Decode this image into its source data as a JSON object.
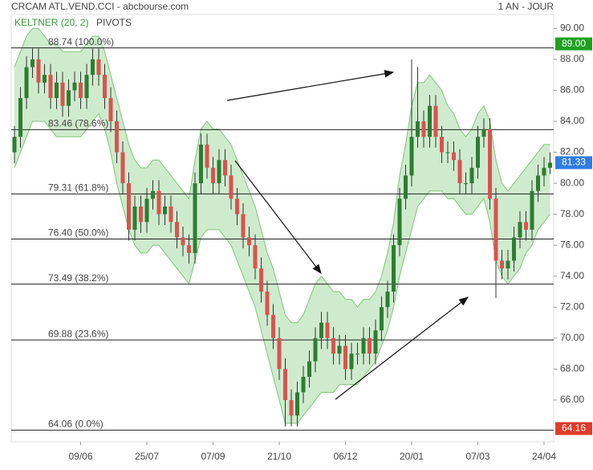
{
  "chart_data": {
    "type": "candlestick",
    "title": "CRCAM ATL.VEND.CCI - abcbourse.com",
    "period": "1 AN - JOUR",
    "indicators": [
      "KELTNER (20, 2)",
      "PIVOTS"
    ],
    "categories": [
      null,
      null,
      null,
      null,
      null,
      null,
      null,
      null,
      null,
      null,
      null,
      "09/06",
      null,
      null,
      null,
      null,
      null,
      null,
      null,
      null,
      null,
      null,
      "25/07",
      null,
      null,
      null,
      null,
      null,
      null,
      null,
      null,
      null,
      null,
      "07/09",
      null,
      null,
      null,
      null,
      null,
      null,
      null,
      null,
      null,
      null,
      "21/10",
      null,
      null,
      null,
      null,
      null,
      null,
      null,
      null,
      null,
      null,
      "06/12",
      null,
      null,
      null,
      null,
      null,
      null,
      null,
      null,
      null,
      null,
      "20/01",
      null,
      null,
      null,
      null,
      null,
      null,
      null,
      null,
      null,
      null,
      "07/03",
      null,
      null,
      null,
      null,
      null,
      null,
      null,
      null,
      null,
      null,
      "24/04",
      null
    ],
    "open": [
      82.0,
      83.0,
      85.5,
      87.5,
      88.0,
      86.5,
      87.0,
      85.5,
      86.5,
      85.0,
      86.0,
      86.5,
      85.5,
      87.0,
      88.0,
      87.0,
      85.5,
      84.0,
      82.0,
      80.0,
      77.0,
      78.5,
      77.5,
      79.0,
      79.5,
      78.0,
      78.5,
      77.5,
      76.5,
      76.0,
      75.5,
      80.0,
      82.5,
      81.0,
      80.0,
      81.5,
      80.5,
      79.0,
      78.0,
      76.5,
      76.0,
      74.5,
      73.0,
      71.5,
      70.0,
      68.0,
      66.0,
      65.0,
      66.5,
      67.5,
      68.5,
      70.0,
      71.0,
      70.0,
      69.0,
      69.5,
      68.0,
      69.0,
      69.0,
      70.0,
      69.0,
      70.5,
      72.0,
      73.0,
      76.0,
      79.0,
      80.5,
      83.0,
      84.0,
      83.0,
      85.0,
      83.0,
      82.0,
      82.0,
      81.5,
      80.0,
      80.0,
      81.0,
      83.0,
      83.5,
      79.0,
      75.0,
      74.5,
      75.0,
      76.5,
      77.5,
      77.0,
      79.5,
      80.5,
      81.0
    ],
    "high": [
      83.7,
      86.2,
      88.2,
      88.7,
      88.7,
      87.7,
      87.7,
      87.2,
      87.2,
      86.7,
      87.2,
      87.2,
      87.7,
      88.7,
      88.7,
      87.7,
      86.2,
      84.7,
      82.7,
      80.7,
      79.2,
      79.2,
      79.7,
      80.2,
      80.2,
      79.2,
      79.2,
      78.2,
      77.2,
      76.7,
      80.7,
      83.2,
      83.2,
      81.7,
      82.2,
      82.2,
      81.2,
      79.7,
      78.7,
      77.2,
      76.7,
      75.2,
      73.7,
      72.2,
      70.7,
      68.7,
      66.7,
      67.2,
      68.2,
      69.2,
      70.7,
      71.7,
      71.7,
      70.7,
      70.2,
      70.2,
      69.7,
      69.7,
      70.7,
      70.7,
      71.2,
      72.7,
      73.7,
      76.7,
      79.7,
      81.2,
      88.0,
      87.5,
      84.7,
      85.7,
      85.7,
      83.7,
      82.7,
      82.7,
      82.2,
      80.7,
      81.7,
      83.7,
      84.2,
      84.2,
      79.7,
      75.7,
      75.7,
      77.2,
      78.2,
      78.2,
      80.2,
      81.2,
      81.7,
      82.0
    ],
    "low": [
      81.3,
      82.3,
      84.8,
      86.8,
      85.8,
      85.8,
      84.8,
      84.8,
      84.3,
      84.3,
      85.3,
      84.8,
      84.8,
      86.3,
      86.3,
      84.8,
      83.3,
      81.3,
      79.3,
      76.3,
      76.3,
      76.8,
      76.8,
      78.3,
      77.3,
      77.3,
      76.8,
      75.8,
      75.3,
      74.8,
      74.8,
      79.3,
      80.3,
      79.3,
      79.3,
      79.8,
      78.3,
      77.3,
      75.8,
      75.3,
      73.8,
      72.3,
      70.8,
      69.3,
      67.3,
      64.3,
      64.3,
      64.3,
      65.8,
      66.8,
      67.8,
      69.3,
      69.3,
      68.3,
      68.3,
      67.3,
      67.3,
      68.3,
      68.3,
      68.3,
      68.3,
      69.8,
      71.3,
      72.3,
      75.3,
      78.3,
      79.8,
      82.3,
      82.3,
      82.3,
      82.3,
      81.3,
      81.3,
      80.8,
      79.3,
      79.3,
      79.3,
      80.3,
      82.3,
      78.3,
      72.6,
      73.8,
      73.8,
      74.3,
      75.8,
      76.3,
      76.3,
      78.8,
      79.8,
      80.6
    ],
    "close": [
      83.0,
      85.5,
      87.5,
      88.0,
      86.5,
      87.0,
      85.5,
      86.5,
      85.0,
      86.0,
      86.5,
      85.5,
      87.0,
      88.0,
      87.0,
      85.5,
      84.0,
      82.0,
      80.0,
      77.0,
      78.5,
      77.5,
      79.0,
      79.5,
      78.0,
      78.5,
      77.5,
      76.5,
      76.0,
      75.5,
      80.0,
      82.5,
      81.0,
      80.0,
      81.5,
      80.5,
      79.0,
      78.0,
      76.5,
      76.0,
      74.5,
      73.0,
      71.5,
      70.0,
      68.0,
      66.0,
      65.0,
      66.5,
      67.5,
      68.5,
      70.0,
      71.0,
      70.0,
      69.0,
      69.5,
      68.0,
      69.0,
      69.0,
      70.0,
      69.0,
      70.5,
      72.0,
      73.0,
      76.0,
      79.0,
      80.5,
      83.0,
      84.0,
      83.0,
      85.0,
      83.0,
      82.0,
      82.0,
      81.5,
      80.0,
      80.0,
      81.0,
      83.0,
      83.5,
      79.0,
      75.0,
      74.5,
      75.0,
      76.5,
      77.5,
      77.0,
      79.5,
      80.5,
      81.0,
      81.33
    ],
    "keltner": {
      "color": "#9fd79b",
      "upper": [
        87.5,
        88.5,
        89.5,
        90.0,
        90.0,
        89.5,
        89.0,
        89.0,
        88.5,
        88.5,
        88.5,
        88.5,
        89.0,
        89.5,
        89.5,
        88.5,
        87.0,
        85.5,
        84.0,
        82.5,
        81.5,
        81.0,
        81.0,
        81.5,
        81.5,
        81.0,
        80.5,
        80.0,
        79.5,
        79.0,
        81.5,
        83.5,
        84.0,
        83.5,
        83.5,
        83.0,
        82.5,
        81.5,
        80.5,
        79.5,
        78.5,
        77.0,
        75.5,
        74.5,
        73.0,
        71.5,
        71.0,
        71.0,
        71.5,
        72.5,
        73.5,
        74.0,
        73.5,
        73.0,
        73.0,
        72.5,
        72.5,
        72.0,
        72.5,
        72.5,
        73.0,
        74.0,
        75.5,
        77.5,
        80.5,
        82.5,
        85.0,
        86.5,
        86.5,
        87.0,
        86.5,
        86.0,
        85.0,
        84.5,
        83.5,
        83.0,
        83.5,
        84.5,
        85.0,
        84.0,
        81.5,
        80.0,
        79.5,
        80.0,
        80.5,
        81.0,
        81.5,
        82.0,
        82.5,
        82.5
      ],
      "lower": [
        81.0,
        82.0,
        83.0,
        84.0,
        84.0,
        84.0,
        83.5,
        83.0,
        83.0,
        83.0,
        83.0,
        83.0,
        83.5,
        84.0,
        84.5,
        83.5,
        82.0,
        80.0,
        78.5,
        77.0,
        76.0,
        75.5,
        75.5,
        76.0,
        76.0,
        75.5,
        75.0,
        74.5,
        74.0,
        73.5,
        75.0,
        76.5,
        77.0,
        77.0,
        77.0,
        76.5,
        76.0,
        75.0,
        74.0,
        73.0,
        72.0,
        70.5,
        69.0,
        67.5,
        66.0,
        64.5,
        64.5,
        64.5,
        65.0,
        65.5,
        66.0,
        66.5,
        66.5,
        66.5,
        67.0,
        67.0,
        67.0,
        67.0,
        67.5,
        68.0,
        68.5,
        69.5,
        70.5,
        72.0,
        74.0,
        75.5,
        77.0,
        78.5,
        79.0,
        79.5,
        79.5,
        79.5,
        79.0,
        79.0,
        78.5,
        78.0,
        78.0,
        78.5,
        79.0,
        77.5,
        75.0,
        74.0,
        73.5,
        74.0,
        74.5,
        75.5,
        76.0,
        77.0,
        77.5,
        78.0
      ]
    },
    "fib_levels": [
      {
        "value": 88.74,
        "label": "88.74 (100.0%)"
      },
      {
        "value": 83.46,
        "label": "83.46 (78.6%)"
      },
      {
        "value": 79.31,
        "label": "79.31 (61.8%)"
      },
      {
        "value": 76.4,
        "label": "76.40 (50.0%)"
      },
      {
        "value": 73.49,
        "label": "73.49 (38.2%)"
      },
      {
        "value": 69.88,
        "label": "69.88 (23.6%)"
      },
      {
        "value": 64.06,
        "label": "64.06 (0.0%)"
      }
    ],
    "price_markers": [
      {
        "value": 89,
        "label": "89.00",
        "color": "#1fa01f"
      },
      {
        "value": 81.33,
        "label": "81.33",
        "color": "#2f7de1"
      },
      {
        "value": 64.16,
        "label": "64.16",
        "color": "#e03b2b"
      }
    ],
    "up_color": "#2e7d32",
    "down_color": "#d9534f",
    "ylim": [
      63.3,
      90.9
    ],
    "yticks": [
      {
        "value": 66,
        "label": "66.00"
      },
      {
        "value": 68,
        "label": "68.00"
      },
      {
        "value": 70,
        "label": "70.00"
      },
      {
        "value": 72,
        "label": "72.00"
      },
      {
        "value": 74,
        "label": "74.00"
      },
      {
        "value": 76,
        "label": "76.00"
      },
      {
        "value": 78,
        "label": "78.00"
      },
      {
        "value": 80,
        "label": "80.00"
      },
      {
        "value": 82,
        "label": "82.00"
      },
      {
        "value": 84,
        "label": "84.00"
      },
      {
        "value": 86,
        "label": "86.00"
      },
      {
        "value": 88,
        "label": "88.00"
      },
      {
        "value": 90,
        "label": "90.00"
      }
    ]
  }
}
